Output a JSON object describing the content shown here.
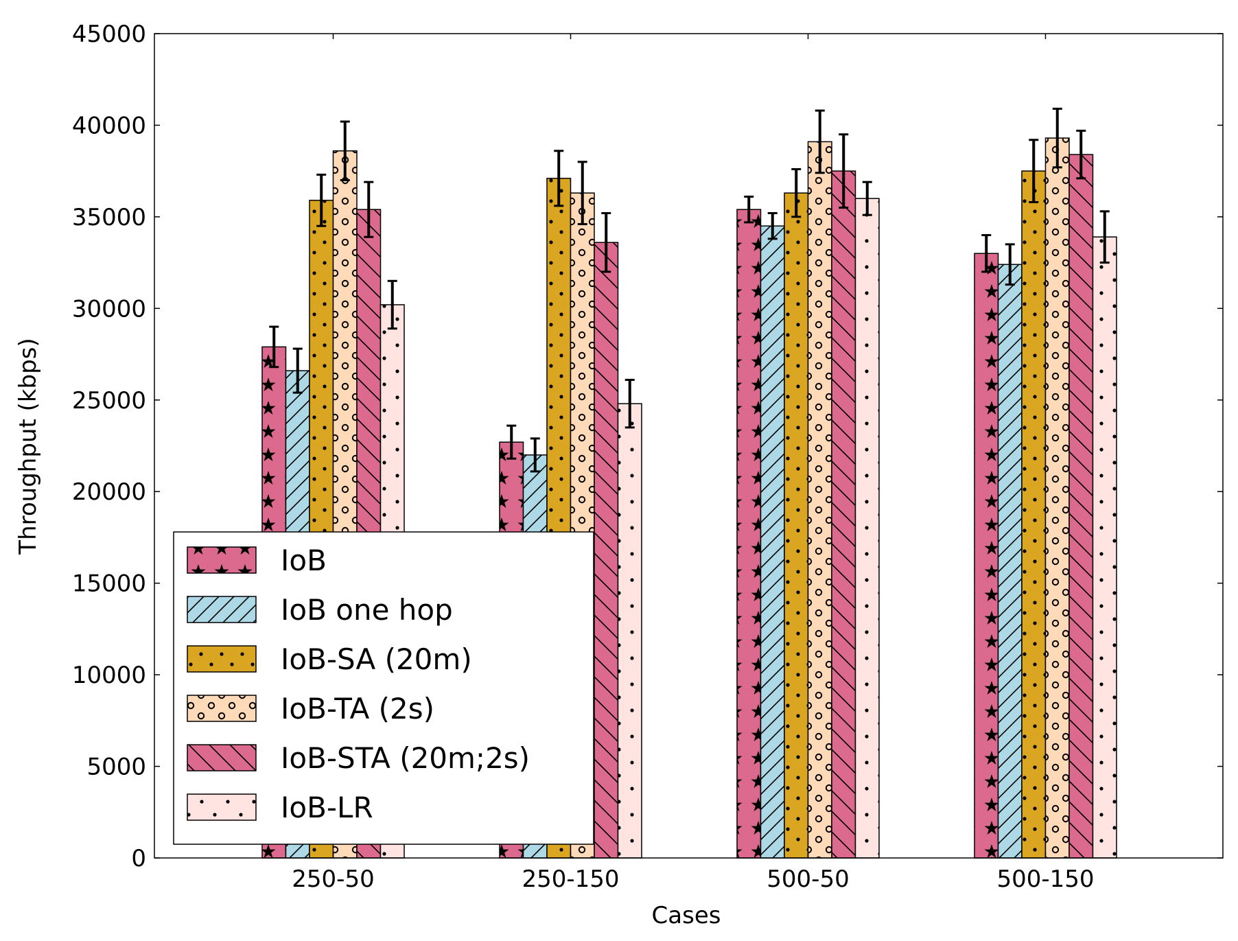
{
  "chart_data": {
    "type": "bar",
    "title": "",
    "xlabel": "Cases",
    "ylabel": "Throughput (kbps)",
    "ylim": [
      0,
      45000
    ],
    "yticks": [
      0,
      5000,
      10000,
      15000,
      20000,
      25000,
      30000,
      35000,
      40000,
      45000
    ],
    "categories": [
      "250-50",
      "250-150",
      "500-50",
      "500-150"
    ],
    "grid": false,
    "legend_position": "lower-left",
    "series": [
      {
        "name": "IoB",
        "color": "#DC6A8E",
        "hatch": "stars",
        "values": [
          27900,
          22700,
          35400,
          33000
        ],
        "errors": [
          1100,
          900,
          700,
          1000
        ]
      },
      {
        "name": "IoB one hop",
        "color": "#ADD8E6",
        "hatch": "diagonal",
        "values": [
          26600,
          22000,
          34500,
          32400
        ],
        "errors": [
          1200,
          900,
          700,
          1100
        ]
      },
      {
        "name": "IoB-SA (20m)",
        "color": "#DAA520",
        "hatch": "dots",
        "values": [
          35900,
          37100,
          36300,
          37500
        ],
        "errors": [
          1400,
          1500,
          1300,
          1700
        ]
      },
      {
        "name": "IoB-TA (2s)",
        "color": "#FFDAB9",
        "hatch": "circles",
        "values": [
          38600,
          36300,
          39100,
          39300
        ],
        "errors": [
          1600,
          1700,
          1700,
          1600
        ]
      },
      {
        "name": "IoB-STA (20m;2s)",
        "color": "#DC6A8E",
        "hatch": "backslash",
        "values": [
          35400,
          33600,
          37500,
          38400
        ],
        "errors": [
          1500,
          1600,
          2000,
          1300
        ]
      },
      {
        "name": "IoB-LR",
        "color": "#FFE4E1",
        "hatch": "sparse-dots",
        "values": [
          30200,
          24800,
          36000,
          33900
        ],
        "errors": [
          1300,
          1300,
          900,
          1400
        ]
      }
    ]
  }
}
